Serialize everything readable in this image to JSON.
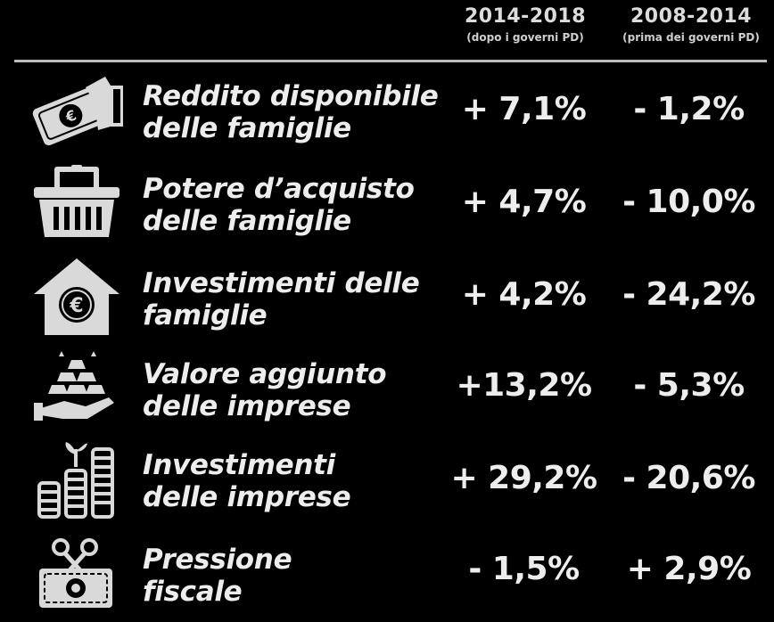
{
  "header": {
    "columns": [
      {
        "period": "2014-2018",
        "note": "(dopo i governi PD)"
      },
      {
        "period": "2008-2014",
        "note": "(prima dei governi PD)"
      }
    ]
  },
  "rows": [
    {
      "label_line1": "Reddito disponibile",
      "label_line2": "delle famiglie",
      "val_2014_2018": "+ 7,1%",
      "val_2008_2014": "- 1,2%",
      "icon": "money-hand-icon"
    },
    {
      "label_line1": "Potere d’acquisto",
      "label_line2": "delle famiglie",
      "val_2014_2018": "+ 4,7%",
      "val_2008_2014": "- 10,0%",
      "icon": "shopping-basket-icon"
    },
    {
      "label_line1": "Investimenti delle",
      "label_line2": "famiglie",
      "val_2014_2018": "+ 4,2%",
      "val_2008_2014": "- 24,2%",
      "icon": "house-euro-icon"
    },
    {
      "label_line1": "Valore aggiunto",
      "label_line2": "delle imprese",
      "val_2014_2018": "+13,2%",
      "val_2008_2014": "- 5,3%",
      "icon": "gold-bars-hand-icon"
    },
    {
      "label_line1": "Investimenti",
      "label_line2": "delle imprese",
      "val_2014_2018": "+ 29,2%",
      "val_2008_2014": "- 20,6%",
      "icon": "coin-stacks-plant-icon"
    },
    {
      "label_line1": "Pressione",
      "label_line2": "fiscale",
      "val_2014_2018": "- 1,5%",
      "val_2008_2014": "+ 2,9%",
      "icon": "scissors-banknote-icon"
    }
  ]
}
